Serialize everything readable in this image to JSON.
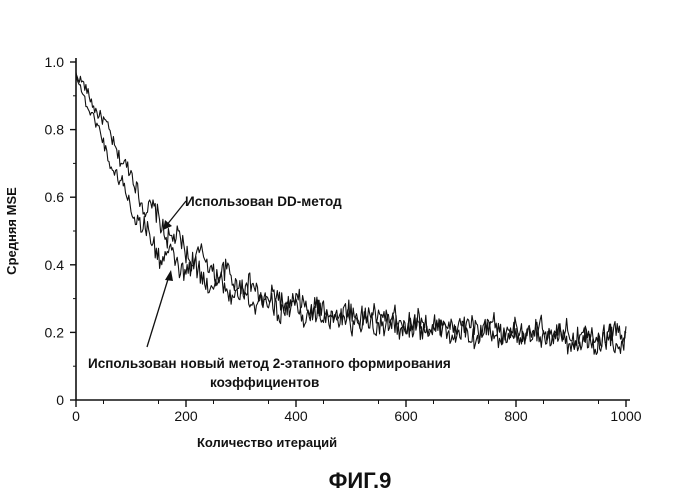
{
  "figure_label": "ФИГ.9",
  "chart_data": {
    "type": "line",
    "title": "",
    "xlabel": "Количество итераций",
    "ylabel": "Средняя MSE",
    "xlim": [
      0,
      1000
    ],
    "ylim": [
      0,
      1.0
    ],
    "x_ticks": [
      "0",
      "200",
      "400",
      "600",
      "800",
      "1000"
    ],
    "y_ticks": [
      "0",
      "0.2",
      "0.4",
      "0.6",
      "0.8",
      "1.0"
    ],
    "grid": false,
    "annotations": [
      {
        "text": "Использован DD-метод",
        "series": 0
      },
      {
        "text": "Использован новый метод 2-этапного формирования коэффициентов",
        "series": 1
      }
    ],
    "x": [
      0,
      25,
      50,
      75,
      100,
      125,
      150,
      175,
      200,
      225,
      250,
      300,
      350,
      400,
      450,
      500,
      550,
      600,
      650,
      700,
      750,
      800,
      850,
      900,
      950,
      1000
    ],
    "series": [
      {
        "name": "Использован DD-метод",
        "values": [
          0.96,
          0.9,
          0.82,
          0.74,
          0.66,
          0.58,
          0.53,
          0.48,
          0.44,
          0.42,
          0.39,
          0.34,
          0.3,
          0.28,
          0.26,
          0.25,
          0.24,
          0.23,
          0.22,
          0.21,
          0.21,
          0.2,
          0.2,
          0.19,
          0.19,
          0.19
        ]
      },
      {
        "name": "Использован новый метод 2-этапного формирования коэффициентов",
        "values": [
          0.96,
          0.86,
          0.76,
          0.66,
          0.58,
          0.5,
          0.44,
          0.41,
          0.39,
          0.37,
          0.35,
          0.31,
          0.28,
          0.27,
          0.25,
          0.24,
          0.23,
          0.22,
          0.21,
          0.2,
          0.2,
          0.19,
          0.19,
          0.18,
          0.18,
          0.18
        ]
      }
    ]
  }
}
